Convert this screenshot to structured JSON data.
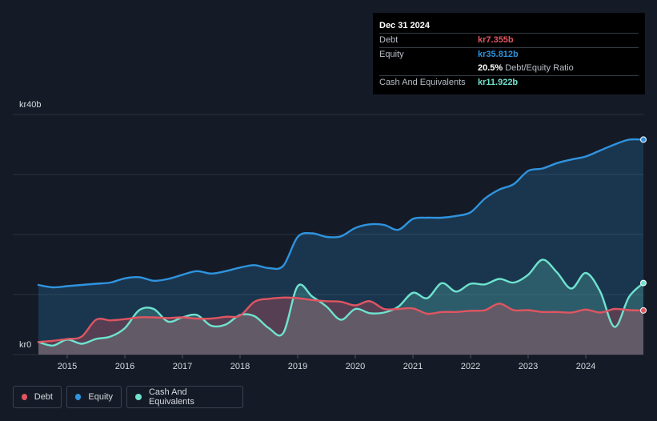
{
  "tooltip": {
    "date": "Dec 31 2024",
    "debt_label": "Debt",
    "debt_value": "kr7.355b",
    "equity_label": "Equity",
    "equity_value": "kr35.812b",
    "ratio_value": "20.5%",
    "ratio_label": "Debt/Equity Ratio",
    "cash_label": "Cash And Equivalents",
    "cash_value": "kr11.922b"
  },
  "legend": {
    "debt": "Debt",
    "equity": "Equity",
    "cash": "Cash And Equivalents"
  },
  "colors": {
    "debt": "#e05561",
    "equity": "#2f94e0",
    "cash": "#6fe3cf",
    "background": "#151b26"
  },
  "chart_data": {
    "type": "area",
    "y_top_label": "kr40b",
    "y_bottom_label": "kr0",
    "ylim": [
      0,
      40
    ],
    "xlim": [
      2014.5,
      2025.0
    ],
    "x_ticks": [
      "2015",
      "2016",
      "2017",
      "2018",
      "2019",
      "2020",
      "2021",
      "2022",
      "2023",
      "2024"
    ],
    "grid": true,
    "legend_position": "bottom-left",
    "series": [
      {
        "name": "Debt",
        "x": [
          2014.5,
          2014.75,
          2015.0,
          2015.25,
          2015.5,
          2015.75,
          2016.0,
          2016.25,
          2016.5,
          2016.75,
          2017.0,
          2017.25,
          2017.5,
          2017.75,
          2018.0,
          2018.25,
          2018.5,
          2018.75,
          2019.0,
          2019.25,
          2019.5,
          2019.75,
          2020.0,
          2020.25,
          2020.5,
          2020.75,
          2021.0,
          2021.25,
          2021.5,
          2021.75,
          2022.0,
          2022.25,
          2022.5,
          2022.75,
          2023.0,
          2023.25,
          2023.5,
          2023.75,
          2024.0,
          2024.25,
          2024.5,
          2024.75,
          2025.0
        ],
        "values": [
          2.1,
          2.3,
          2.6,
          3.0,
          5.8,
          5.7,
          5.9,
          6.2,
          6.2,
          6.1,
          6.2,
          6.0,
          6.0,
          6.3,
          6.5,
          8.8,
          9.3,
          9.5,
          9.4,
          9.1,
          8.9,
          8.8,
          8.2,
          8.9,
          7.6,
          7.6,
          7.7,
          6.8,
          7.1,
          7.1,
          7.3,
          7.4,
          8.5,
          7.4,
          7.4,
          7.1,
          7.1,
          7.0,
          7.5,
          7.0,
          7.6,
          7.4,
          7.355
        ]
      },
      {
        "name": "Equity",
        "x": [
          2014.5,
          2014.75,
          2015.0,
          2015.25,
          2015.5,
          2015.75,
          2016.0,
          2016.25,
          2016.5,
          2016.75,
          2017.0,
          2017.25,
          2017.5,
          2017.75,
          2018.0,
          2018.25,
          2018.5,
          2018.75,
          2019.0,
          2019.25,
          2019.5,
          2019.75,
          2020.0,
          2020.25,
          2020.5,
          2020.75,
          2021.0,
          2021.25,
          2021.5,
          2021.75,
          2022.0,
          2022.25,
          2022.5,
          2022.75,
          2023.0,
          2023.25,
          2023.5,
          2023.75,
          2024.0,
          2024.25,
          2024.5,
          2024.75,
          2025.0
        ],
        "values": [
          11.6,
          11.2,
          11.4,
          11.6,
          11.8,
          12.0,
          12.7,
          12.9,
          12.3,
          12.6,
          13.3,
          13.9,
          13.5,
          13.9,
          14.5,
          14.9,
          14.4,
          14.8,
          19.6,
          20.2,
          19.6,
          19.7,
          21.1,
          21.7,
          21.6,
          20.8,
          22.6,
          22.8,
          22.8,
          23.1,
          23.7,
          26.0,
          27.5,
          28.4,
          30.6,
          31.0,
          31.9,
          32.5,
          33.0,
          34.0,
          35.0,
          35.8,
          35.812
        ]
      },
      {
        "name": "Cash And Equivalents",
        "x": [
          2014.5,
          2014.75,
          2015.0,
          2015.25,
          2015.5,
          2015.75,
          2016.0,
          2016.25,
          2016.5,
          2016.75,
          2017.0,
          2017.25,
          2017.5,
          2017.75,
          2018.0,
          2018.25,
          2018.5,
          2018.75,
          2019.0,
          2019.25,
          2019.5,
          2019.75,
          2020.0,
          2020.25,
          2020.5,
          2020.75,
          2021.0,
          2021.25,
          2021.5,
          2021.75,
          2022.0,
          2022.25,
          2022.5,
          2022.75,
          2023.0,
          2023.25,
          2023.5,
          2023.75,
          2024.0,
          2024.25,
          2024.5,
          2024.75,
          2025.0
        ],
        "values": [
          2.1,
          1.5,
          2.5,
          1.8,
          2.6,
          3.0,
          4.4,
          7.4,
          7.6,
          5.5,
          6.2,
          6.6,
          4.8,
          5.0,
          6.6,
          6.4,
          4.4,
          3.6,
          11.4,
          9.7,
          8.0,
          5.8,
          7.6,
          6.9,
          7.0,
          8.0,
          10.3,
          9.4,
          11.9,
          10.5,
          11.8,
          11.7,
          12.6,
          12.0,
          13.3,
          15.8,
          13.7,
          11.0,
          13.6,
          10.5,
          4.6,
          9.6,
          11.922
        ]
      }
    ]
  }
}
